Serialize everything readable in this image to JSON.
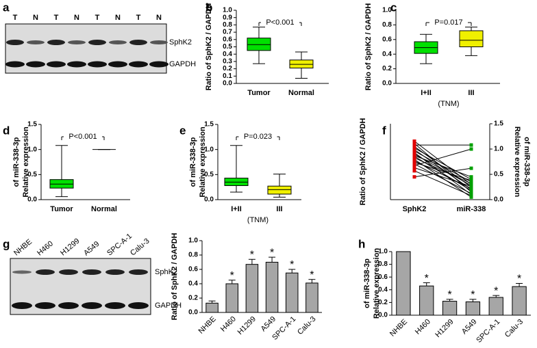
{
  "panel_labels": [
    "a",
    "b",
    "c",
    "d",
    "e",
    "f",
    "g",
    "h"
  ],
  "blot_a": {
    "lanes": [
      "T",
      "N",
      "T",
      "N",
      "T",
      "N",
      "T",
      "N"
    ],
    "bands": [
      "SphK2",
      "GAPDH"
    ]
  },
  "blot_g": {
    "lanes": [
      "NHBE",
      "H460",
      "H1299",
      "A549",
      "SPC-A-1",
      "Calu-3"
    ],
    "bands": [
      "SphK2",
      "GAPDH"
    ]
  },
  "chart_data": [
    {
      "type": "box",
      "ylabel": [
        "Ratio of SphK2 / GAPDH"
      ],
      "categories": [
        "Tumor",
        "Normal"
      ],
      "boxes": [
        {
          "color": "#00e000",
          "min": 0.27,
          "q1": 0.45,
          "median": 0.53,
          "q3": 0.62,
          "max": 0.77
        },
        {
          "color": "#f0f000",
          "min": 0.07,
          "q1": 0.21,
          "median": 0.26,
          "q3": 0.32,
          "max": 0.43
        }
      ],
      "ylim": [
        0,
        1
      ],
      "yticks": [
        {
          "value": 0,
          "label": "0.0"
        },
        0.1,
        0.2,
        0.3,
        0.4,
        0.5,
        0.6,
        0.7,
        0.8,
        0.9,
        {
          "value": 1,
          "label": "1.0"
        }
      ],
      "annotation": "P<0.001"
    },
    {
      "type": "box",
      "ylabel": [
        "Ratio of SphK2 / GAPDH"
      ],
      "categories": [
        "I+II",
        "III"
      ],
      "xlabel": "(TNM)",
      "boxes": [
        {
          "color": "#00e000",
          "min": 0.27,
          "q1": 0.41,
          "median": 0.49,
          "q3": 0.57,
          "max": 0.67
        },
        {
          "color": "#f0f000",
          "min": 0.38,
          "q1": 0.5,
          "median": 0.59,
          "q3": 0.72,
          "max": 0.77
        }
      ],
      "ylim": [
        0,
        1
      ],
      "yticks": [
        {
          "value": 0,
          "label": "0.0"
        },
        0.2,
        0.4,
        0.6,
        0.8,
        {
          "value": 1,
          "label": "1.0"
        }
      ],
      "annotation": "P=0.017"
    },
    {
      "type": "box",
      "ylabel": [
        "Relative expression",
        "of  miR-338-3p"
      ],
      "categories": [
        "Tumor",
        "Normal"
      ],
      "boxes": [
        {
          "color": "#00e000",
          "min": 0.06,
          "q1": 0.23,
          "median": 0.31,
          "q3": 0.4,
          "max": 1.08
        },
        {
          "color": "#f0f000",
          "min": 1,
          "q1": 1,
          "median": 1,
          "q3": 1,
          "max": 1
        }
      ],
      "ylim": [
        0,
        1.5
      ],
      "yticks": [
        {
          "value": 0,
          "label": "0.0"
        },
        0.5,
        {
          "value": 1,
          "label": "1.0"
        },
        1.5
      ],
      "annotation": "P<0.001"
    },
    {
      "type": "box",
      "ylabel": [
        "Relative expression",
        "of  miR-338-3p"
      ],
      "categories": [
        "I+II",
        "III"
      ],
      "xlabel": "(TNM)",
      "boxes": [
        {
          "color": "#00e000",
          "min": 0.15,
          "q1": 0.28,
          "median": 0.35,
          "q3": 0.43,
          "max": 1.08
        },
        {
          "color": "#f0f000",
          "min": 0.05,
          "q1": 0.11,
          "median": 0.2,
          "q3": 0.27,
          "max": 0.51
        }
      ],
      "ylim": [
        0,
        1.5
      ],
      "yticks": [
        {
          "value": 0,
          "label": "0.0"
        },
        0.5,
        {
          "value": 1,
          "label": "1.0"
        },
        1.5
      ],
      "annotation": "P=0.023"
    },
    {
      "type": "paired",
      "ylabel": [
        "Ratio of SphK2 / GAPDH"
      ],
      "y2label": [
        "Relative expression",
        "of  miR-338-3p"
      ],
      "ylim": [
        0,
        1
      ],
      "y2lim": [
        0,
        1.5
      ],
      "y2ticks": [
        {
          "value": 0,
          "label": "0.0"
        },
        0.5,
        {
          "value": 1,
          "label": "1.0"
        },
        1.5
      ],
      "series": [
        {
          "name": "SphK2",
          "color": "#e00000",
          "values": [
            0.77,
            0.74,
            0.72,
            0.7,
            0.68,
            0.66,
            0.64,
            0.62,
            0.6,
            0.58,
            0.57,
            0.55,
            0.53,
            0.51,
            0.49,
            0.47,
            0.45,
            0.42,
            0.38,
            0.3
          ]
        },
        {
          "name": "miR-338",
          "color": "#00a000",
          "axis": "y2",
          "values": [
            0.3,
            0.15,
            1.08,
            0.25,
            0.4,
            0.2,
            0.35,
            0.1,
            0.28,
            0.45,
            0.18,
            0.32,
            0.05,
            0.22,
            0.38,
            0.12,
            1.0,
            0.26,
            0.08,
            0.62
          ]
        }
      ]
    },
    {
      "type": "bar",
      "ylabel": [
        "Ratio of SphK2 / GAPDH"
      ],
      "categories": [
        "NHBE",
        "H460",
        "H1299",
        "A549",
        "SPC-A-1",
        "Calu-3"
      ],
      "values": [
        0.13,
        0.4,
        0.67,
        0.7,
        0.55,
        0.41
      ],
      "errors": [
        0.03,
        0.05,
        0.07,
        0.07,
        0.05,
        0.05
      ],
      "significance": [
        null,
        "*",
        "*",
        "*",
        "*",
        "*"
      ],
      "color": "#a6a6a6",
      "ylim": [
        0,
        1
      ],
      "yticks": [
        {
          "value": 0,
          "label": "0.0"
        },
        0.2,
        0.4,
        0.6,
        0.8,
        {
          "value": 1,
          "label": "1.0"
        }
      ]
    },
    {
      "type": "bar",
      "ylabel": [
        "Relative expression",
        "of  miR-338-3p"
      ],
      "categories": [
        "NHBE",
        "H460",
        "H1299",
        "A549",
        "SPC-A-1",
        "Calu-3"
      ],
      "values": [
        1.0,
        0.46,
        0.22,
        0.21,
        0.28,
        0.45
      ],
      "errors": [
        null,
        0.05,
        0.03,
        0.04,
        0.03,
        0.05
      ],
      "significance": [
        null,
        "*",
        "*",
        "*",
        "*",
        "*"
      ],
      "color": "#a6a6a6",
      "ylim": [
        0,
        1
      ],
      "yticks": [
        {
          "value": 0,
          "label": "0.0"
        },
        0.2,
        0.4,
        0.6,
        0.8,
        {
          "value": 1,
          "label": "1.0"
        }
      ]
    }
  ]
}
